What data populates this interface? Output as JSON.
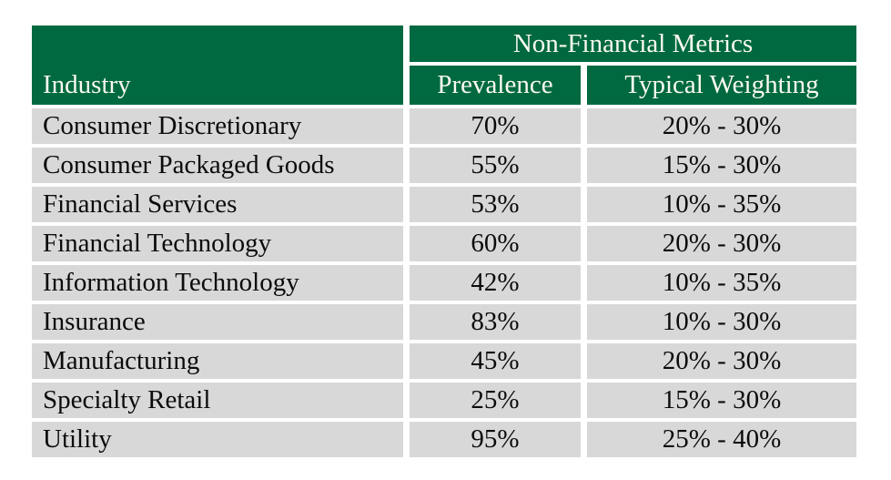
{
  "colors": {
    "header_green": "#00693F",
    "row_gray": "#D8D8D8",
    "header_text": "#FBFAEE",
    "body_text": "#0B0B0B",
    "background": "#FFFFFF"
  },
  "table": {
    "group_header": "Non-Financial Metrics",
    "columns": [
      "Industry",
      "Prevalence",
      "Typical Weighting"
    ],
    "rows": [
      {
        "industry": "Consumer Discretionary",
        "prevalence": "70%",
        "weighting": "20% - 30%"
      },
      {
        "industry": "Consumer Packaged Goods",
        "prevalence": "55%",
        "weighting": "15% - 30%"
      },
      {
        "industry": "Financial Services",
        "prevalence": "53%",
        "weighting": "10% - 35%"
      },
      {
        "industry": "Financial Technology",
        "prevalence": "60%",
        "weighting": "20% - 30%"
      },
      {
        "industry": "Information Technology",
        "prevalence": "42%",
        "weighting": "10% - 35%"
      },
      {
        "industry": "Insurance",
        "prevalence": "83%",
        "weighting": "10% - 30%"
      },
      {
        "industry": "Manufacturing",
        "prevalence": "45%",
        "weighting": "20% - 30%"
      },
      {
        "industry": "Specialty Retail",
        "prevalence": "25%",
        "weighting": "15% - 30%"
      },
      {
        "industry": "Utility",
        "prevalence": "95%",
        "weighting": "25% - 40%"
      }
    ]
  },
  "chart_data": {
    "type": "table",
    "title": "Non-Financial Metrics",
    "columns": [
      "Industry",
      "Prevalence",
      "Typical Weighting"
    ],
    "rows": [
      [
        "Consumer Discretionary",
        "70%",
        "20% - 30%"
      ],
      [
        "Consumer Packaged Goods",
        "55%",
        "15% - 30%"
      ],
      [
        "Financial Services",
        "53%",
        "10% - 35%"
      ],
      [
        "Financial Technology",
        "60%",
        "20% - 30%"
      ],
      [
        "Information Technology",
        "42%",
        "10% - 35%"
      ],
      [
        "Insurance",
        "83%",
        "10% - 30%"
      ],
      [
        "Manufacturing",
        "45%",
        "20% - 30%"
      ],
      [
        "Specialty Retail",
        "25%",
        "15% - 30%"
      ],
      [
        "Utility",
        "95%",
        "25% - 40%"
      ]
    ],
    "prevalence_values_pct": [
      70,
      55,
      53,
      60,
      42,
      83,
      45,
      25,
      95
    ],
    "weighting_ranges_pct": [
      [
        20,
        30
      ],
      [
        15,
        30
      ],
      [
        10,
        35
      ],
      [
        20,
        30
      ],
      [
        10,
        35
      ],
      [
        10,
        30
      ],
      [
        20,
        30
      ],
      [
        15,
        30
      ],
      [
        25,
        40
      ]
    ]
  }
}
